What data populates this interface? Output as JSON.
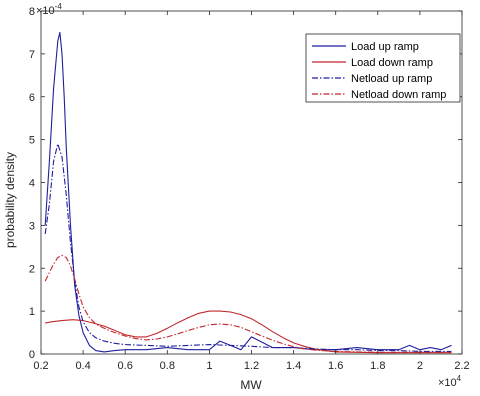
{
  "chart_data": {
    "type": "line",
    "title": "",
    "xlabel": "MW",
    "ylabel": "probability density",
    "x_multiplier_label": "×10",
    "x_multiplier_exp": "4",
    "y_multiplier_label": "×10",
    "y_multiplier_exp": "-4",
    "xlim": [
      0.2,
      2.2
    ],
    "ylim": [
      0,
      8
    ],
    "x_ticks": [
      0.2,
      0.4,
      0.6,
      0.8,
      1,
      1.2,
      1.4,
      1.6,
      1.8,
      2,
      2.2
    ],
    "x_tick_labels": [
      "0.2",
      "0.4",
      "0.6",
      "0.8",
      "1",
      "1.2",
      "1.4",
      "1.6",
      "1.8",
      "2",
      "2.2"
    ],
    "y_ticks": [
      0,
      1,
      2,
      3,
      4,
      5,
      6,
      7,
      8
    ],
    "y_tick_labels": [
      "0",
      "1",
      "2",
      "3",
      "4",
      "5",
      "6",
      "7",
      "8"
    ],
    "legend_position": "top-right",
    "grid": false,
    "series": [
      {
        "name": "Load up ramp",
        "color": "#1f1f9e",
        "dash": "solid",
        "x": [
          0.22,
          0.24,
          0.26,
          0.28,
          0.29,
          0.3,
          0.31,
          0.32,
          0.34,
          0.36,
          0.38,
          0.4,
          0.43,
          0.46,
          0.5,
          0.55,
          0.6,
          0.7,
          0.8,
          0.9,
          1.0,
          1.05,
          1.1,
          1.15,
          1.2,
          1.3,
          1.4,
          1.5,
          1.6,
          1.7,
          1.8,
          1.9,
          1.95,
          2.0,
          2.05,
          2.1,
          2.15
        ],
        "y": [
          3.0,
          4.5,
          6.2,
          7.3,
          7.5,
          7.0,
          6.0,
          4.8,
          3.0,
          1.6,
          0.9,
          0.5,
          0.2,
          0.08,
          0.05,
          0.08,
          0.1,
          0.1,
          0.15,
          0.1,
          0.1,
          0.3,
          0.2,
          0.1,
          0.4,
          0.15,
          0.15,
          0.1,
          0.1,
          0.15,
          0.1,
          0.1,
          0.2,
          0.1,
          0.15,
          0.1,
          0.2
        ]
      },
      {
        "name": "Load down ramp",
        "color": "#c0282d",
        "dash": "solid",
        "x": [
          0.22,
          0.25,
          0.3,
          0.35,
          0.4,
          0.45,
          0.5,
          0.55,
          0.6,
          0.65,
          0.7,
          0.75,
          0.8,
          0.85,
          0.9,
          0.95,
          1.0,
          1.05,
          1.1,
          1.15,
          1.2,
          1.25,
          1.3,
          1.35,
          1.4,
          1.45,
          1.5,
          1.55,
          1.6,
          1.7,
          1.8,
          1.9,
          2.0,
          2.1,
          2.15
        ],
        "y": [
          0.72,
          0.75,
          0.78,
          0.8,
          0.78,
          0.72,
          0.65,
          0.55,
          0.45,
          0.4,
          0.4,
          0.48,
          0.6,
          0.73,
          0.85,
          0.95,
          1.0,
          1.0,
          0.98,
          0.92,
          0.82,
          0.68,
          0.52,
          0.38,
          0.26,
          0.18,
          0.12,
          0.08,
          0.05,
          0.04,
          0.03,
          0.03,
          0.03,
          0.03,
          0.03
        ]
      },
      {
        "name": "Netload up ramp",
        "color": "#1f1f9e",
        "dash": "dashdot",
        "x": [
          0.22,
          0.24,
          0.26,
          0.28,
          0.3,
          0.32,
          0.34,
          0.36,
          0.38,
          0.4,
          0.43,
          0.46,
          0.5,
          0.55,
          0.6,
          0.7,
          0.8,
          0.9,
          1.0,
          1.1,
          1.2,
          1.3,
          1.4,
          1.5,
          1.6,
          1.7,
          1.8,
          1.9,
          2.0,
          2.1,
          2.15
        ],
        "y": [
          2.8,
          3.5,
          4.5,
          4.9,
          4.6,
          3.7,
          2.6,
          1.7,
          1.1,
          0.75,
          0.5,
          0.38,
          0.3,
          0.25,
          0.22,
          0.2,
          0.18,
          0.2,
          0.22,
          0.2,
          0.18,
          0.15,
          0.15,
          0.12,
          0.1,
          0.1,
          0.08,
          0.08,
          0.06,
          0.06,
          0.06
        ]
      },
      {
        "name": "Netload down ramp",
        "color": "#c0282d",
        "dash": "dashdot",
        "x": [
          0.22,
          0.24,
          0.26,
          0.28,
          0.3,
          0.32,
          0.34,
          0.36,
          0.38,
          0.4,
          0.43,
          0.46,
          0.5,
          0.55,
          0.6,
          0.65,
          0.7,
          0.75,
          0.8,
          0.85,
          0.9,
          0.95,
          1.0,
          1.05,
          1.1,
          1.15,
          1.2,
          1.25,
          1.3,
          1.35,
          1.4,
          1.45,
          1.5,
          1.6,
          1.7,
          1.8,
          2.0,
          2.15
        ],
        "y": [
          1.7,
          1.9,
          2.1,
          2.25,
          2.3,
          2.25,
          2.05,
          1.75,
          1.4,
          1.1,
          0.85,
          0.7,
          0.6,
          0.5,
          0.42,
          0.36,
          0.33,
          0.35,
          0.4,
          0.47,
          0.55,
          0.62,
          0.68,
          0.7,
          0.68,
          0.62,
          0.52,
          0.42,
          0.32,
          0.24,
          0.17,
          0.12,
          0.09,
          0.06,
          0.05,
          0.04,
          0.04,
          0.04
        ]
      }
    ]
  }
}
